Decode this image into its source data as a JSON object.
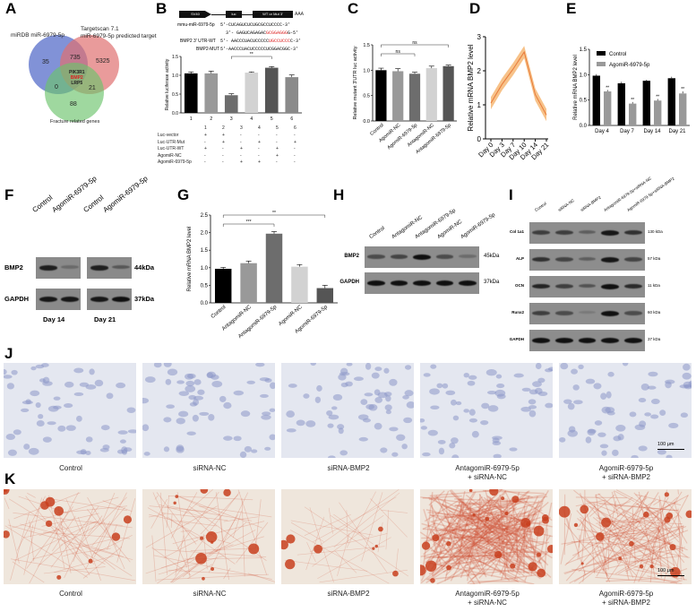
{
  "panels": {
    "A": "A",
    "B": "B",
    "C": "C",
    "D": "D",
    "E": "E",
    "F": "F",
    "G": "G",
    "H": "H",
    "I": "I",
    "J": "J",
    "K": "K"
  },
  "venn": {
    "set1": "miRDB miR-6979-5p",
    "set2_line1": "Targetscan 7.1",
    "set2_line2": "miR-6979-5p predicted target",
    "set3": "Fracture related genes",
    "only1": "35",
    "only2": "5325",
    "only3": "88",
    "s12": "735",
    "s13": "0",
    "s23": "21",
    "center": [
      "PIK3R1",
      "BMP2",
      "LRP5"
    ],
    "colors": {
      "set1": "#6b7fd0",
      "set2": "#e07070",
      "set3": "#6cc36c",
      "highlight": "#d22222"
    }
  },
  "construct": {
    "promoter": "SV40",
    "reporter": "luc",
    "utr": "WT or Mut 3'",
    "polyA": "AAA"
  },
  "sequences": [
    {
      "label": "mmu-miR-6979-5p",
      "plain": "5'-CUCAGUCUCUGCGCCUCCCC-3'",
      "red": "",
      "tail": ""
    },
    {
      "label": "",
      "plain": "3'- GAGUCAGAGAC",
      "red": "GCGGAGGG",
      "tail": "G-5'"
    },
    {
      "label": "BMP2 3' UTR-WT",
      "plain": "5'- AACCCUACUCCCCC",
      "red": "UGCCUCCC",
      "tail": "C-3'"
    },
    {
      "label": "BMP2-MUT",
      "plain": "5'-AACCCUACUCCCCCUCGGACGGC-3'",
      "red": "",
      "tail": ""
    }
  ],
  "condition_table": {
    "columns": [
      "1",
      "2",
      "3",
      "4",
      "5",
      "6"
    ],
    "rows": [
      {
        "label": "Luc-vector",
        "values": [
          "+",
          "+",
          "-",
          "-",
          "-",
          "-"
        ]
      },
      {
        "label": "Luc-UTR-Mut",
        "values": [
          "-",
          "+",
          "-",
          "+",
          "-",
          "+"
        ]
      },
      {
        "label": "Luc-UTR-WT",
        "values": [
          "+",
          "-",
          "+",
          "-",
          "+",
          "-"
        ]
      },
      {
        "label": "AgomiR-NC",
        "values": [
          "-",
          "-",
          "-",
          "-",
          "+",
          "-"
        ]
      },
      {
        "label": "AgomiR-6979-5p",
        "values": [
          "-",
          "-",
          "+",
          "+",
          "-",
          "-"
        ]
      }
    ]
  },
  "chart_data": [
    {
      "panel": "B",
      "type": "bar",
      "categories": [
        "1",
        "2",
        "3",
        "4",
        "5",
        "6"
      ],
      "values": [
        1.05,
        1.05,
        0.47,
        1.07,
        1.2,
        0.95
      ],
      "errors": [
        0.04,
        0.06,
        0.04,
        0.02,
        0.03,
        0.06
      ],
      "colors": [
        "#000000",
        "#999999",
        "#6d6d6d",
        "#d2d2d2",
        "#555555",
        "#8a8a8a"
      ],
      "ylabel": "Relative luciferase activity",
      "ylim": [
        0,
        1.5
      ],
      "yticks": [
        "0.0",
        "0.5",
        "1.0",
        "1.5"
      ],
      "annotations": [
        {
          "text": "**",
          "from": 3,
          "to": 5
        }
      ]
    },
    {
      "panel": "C",
      "type": "bar",
      "categories": [
        "Control",
        "AgomiR-NC",
        "AgomiR-6979-5p",
        "AntagomiR-NC",
        "AntagomiR-6979-5p"
      ],
      "values": [
        1.0,
        0.98,
        0.93,
        1.04,
        1.08
      ],
      "errors": [
        0.04,
        0.05,
        0.03,
        0.04,
        0.02
      ],
      "colors": [
        "#000000",
        "#999999",
        "#6d6d6d",
        "#d2d2d2",
        "#555555"
      ],
      "ylabel": "Relative mutant 3'UTR luc activity",
      "ylim": [
        0,
        1.5
      ],
      "yticks": [
        "0.0",
        "0.5",
        "1.0",
        "1.5"
      ],
      "annotations": [
        {
          "text": "ns",
          "from": 1,
          "to": 3
        },
        {
          "text": "ns",
          "from": 1,
          "to": 5
        }
      ]
    },
    {
      "panel": "D",
      "type": "line",
      "categories": [
        "Day 0",
        "Day 3",
        "Day 7",
        "Day 10",
        "Day 14",
        "Day 21"
      ],
      "values": [
        1.05,
        1.6,
        2.05,
        2.55,
        1.3,
        0.7
      ],
      "band": 0.18,
      "color": "#e87a3a",
      "band_color": "#f5b36b",
      "ylabel": "Relative mRNA BMP2 level",
      "ylim": [
        0,
        3
      ],
      "yticks": [
        "0",
        "1",
        "2",
        "3"
      ]
    },
    {
      "panel": "E",
      "type": "bar",
      "categories": [
        "Day 4",
        "Day 7",
        "Day 14",
        "Day 21"
      ],
      "series": [
        {
          "name": "Control",
          "values": [
            0.98,
            0.83,
            0.88,
            0.93
          ],
          "errors": [
            0.03,
            0.03,
            0.02,
            0.03
          ],
          "color": "#000000"
        },
        {
          "name": "AgomiR-6979-5p",
          "values": [
            0.67,
            0.43,
            0.49,
            0.63
          ],
          "errors": [
            0.03,
            0.03,
            0.03,
            0.04
          ],
          "color": "#999999"
        }
      ],
      "ylabel": "Relative mRNA BMP2 level",
      "ylim": [
        0,
        1.5
      ],
      "yticks": [
        "0.0",
        "0.5",
        "1.0",
        "1.5"
      ],
      "annotation": "**",
      "legend": "top-left"
    },
    {
      "panel": "G",
      "type": "bar",
      "categories": [
        "Control",
        "AntagomiR-NC",
        "AntagomiR-6979-5p",
        "AgomiR-NC",
        "AgomiR-6979-5p"
      ],
      "values": [
        0.97,
        1.13,
        1.97,
        1.03,
        0.42
      ],
      "errors": [
        0.04,
        0.06,
        0.06,
        0.06,
        0.08
      ],
      "colors": [
        "#000000",
        "#999999",
        "#6d6d6d",
        "#d2d2d2",
        "#555555"
      ],
      "ylabel": "Relative mRNA BMP2 level",
      "ylim": [
        0,
        2.5
      ],
      "yticks": [
        "0.0",
        "0.5",
        "1.0",
        "1.5",
        "2.0",
        "2.5"
      ],
      "annotations": [
        {
          "text": "***",
          "from": 1,
          "to": 3
        },
        {
          "text": "**",
          "from": 1,
          "to": 5
        }
      ]
    }
  ],
  "blotF": {
    "lanes": [
      "Control",
      "AgomiR-6979-5p"
    ],
    "groups": [
      "Day 14",
      "Day 21"
    ],
    "rows": [
      {
        "label": "BMP2",
        "kda": "44kDa",
        "intensity": [
          [
            0.85,
            0.25
          ],
          [
            0.85,
            0.4
          ]
        ]
      },
      {
        "label": "GAPDH",
        "kda": "37kDa",
        "intensity": [
          [
            0.9,
            0.9
          ],
          [
            0.9,
            0.95
          ]
        ]
      }
    ]
  },
  "blotH": {
    "lanes": [
      "Control",
      "AntagomiR-NC",
      "AntagomiR-6979-5p",
      "AgomiR-NC",
      "AgomiR-6979-5p"
    ],
    "rows": [
      {
        "label": "BMP2",
        "kda": "45kDa",
        "intensity": [
          0.5,
          0.55,
          0.95,
          0.5,
          0.25
        ]
      },
      {
        "label": "GAPDH",
        "kda": "37kDa",
        "intensity": [
          0.95,
          0.95,
          0.95,
          0.95,
          0.95
        ]
      }
    ]
  },
  "blotI": {
    "lanes": [
      "Control",
      "siRNA-NC",
      "siRNA-BMP2",
      "AntagomiR-6979-5p+siRNA-NC",
      "AgomiR-6979-5p+siRNA-BMP2"
    ],
    "rows": [
      {
        "label": "Col 1a1",
        "kda": "130 kDa",
        "intensity": [
          0.6,
          0.6,
          0.35,
          0.9,
          0.7
        ]
      },
      {
        "label": "ALP",
        "kda": "57 kDa",
        "intensity": [
          0.7,
          0.55,
          0.35,
          0.9,
          0.55
        ]
      },
      {
        "label": "OCN",
        "kda": "11 kDa",
        "intensity": [
          0.8,
          0.6,
          0.45,
          0.95,
          0.75
        ]
      },
      {
        "label": "Runx2",
        "kda": "60 kDa",
        "intensity": [
          0.6,
          0.5,
          0.15,
          0.95,
          0.5
        ]
      },
      {
        "label": "GAPDH",
        "kda": "37 kDa",
        "intensity": [
          0.95,
          0.95,
          0.95,
          0.95,
          0.95
        ]
      }
    ]
  },
  "microscopy": {
    "groups": [
      [
        "Control"
      ],
      [
        "siRNA-NC"
      ],
      [
        "siRNA-BMP2"
      ],
      [
        "AntagomiR-6979-5p",
        "+ siRNA-NC"
      ],
      [
        "AgomiR-6979-5p",
        "+ siRNA-BMP2"
      ]
    ],
    "scale_bar": "100 μm",
    "J_stain_color": "#8d97c8",
    "K_stain_color": "#c8401e",
    "K_density": [
      0.25,
      0.25,
      0.12,
      0.95,
      0.55
    ]
  }
}
